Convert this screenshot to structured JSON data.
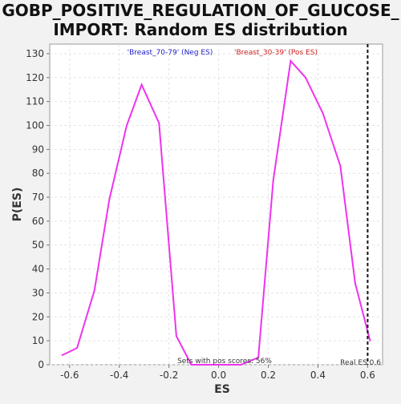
{
  "chart_data": {
    "type": "line",
    "title_lines": [
      "GOBP_POSITIVE_REGULATION_OF_GLUCOSE_",
      "IMPORT: Random ES distribution"
    ],
    "xlabel": "ES",
    "ylabel": "P(ES)",
    "xlim": [
      -0.68,
      0.66
    ],
    "ylim": [
      0,
      134
    ],
    "x_ticks": [
      -0.6,
      -0.4,
      -0.2,
      0.0,
      0.2,
      0.4,
      0.6
    ],
    "x_tick_labels": [
      "-0.6",
      "-0.4",
      "-0.2",
      "0.0",
      "0.2",
      "0.4",
      "0.6"
    ],
    "y_ticks": [
      0,
      10,
      20,
      30,
      40,
      50,
      60,
      70,
      80,
      90,
      100,
      110,
      120,
      130
    ],
    "y_tick_labels": [
      "0",
      "10",
      "20",
      "30",
      "40",
      "50",
      "60",
      "70",
      "80",
      "90",
      "100",
      "110",
      "120",
      "130"
    ],
    "grid": true,
    "series": [
      {
        "color": "#ee33ee",
        "x": [
          -0.63,
          -0.57,
          -0.5,
          -0.44,
          -0.37,
          -0.31,
          -0.24,
          -0.17,
          -0.11,
          -0.04,
          0.02,
          0.09,
          0.16,
          0.22,
          0.29,
          0.35,
          0.42,
          0.49,
          0.55,
          0.61
        ],
        "y": [
          4,
          7,
          31,
          69,
          100,
          117,
          101,
          12,
          0,
          0,
          0,
          0,
          3,
          77,
          127,
          120,
          105,
          83,
          34,
          10
        ]
      }
    ],
    "legend": [
      {
        "text": "'Breast_70-79' (Neg ES)",
        "color": "#2222cc"
      },
      {
        "text": "'Breast_30-39' (Pos ES)",
        "color": "#cc2222"
      }
    ],
    "real_es": {
      "value": 0.6,
      "label": "Real ES 0.6"
    },
    "annotation": "Sets with pos scores: 56%"
  }
}
